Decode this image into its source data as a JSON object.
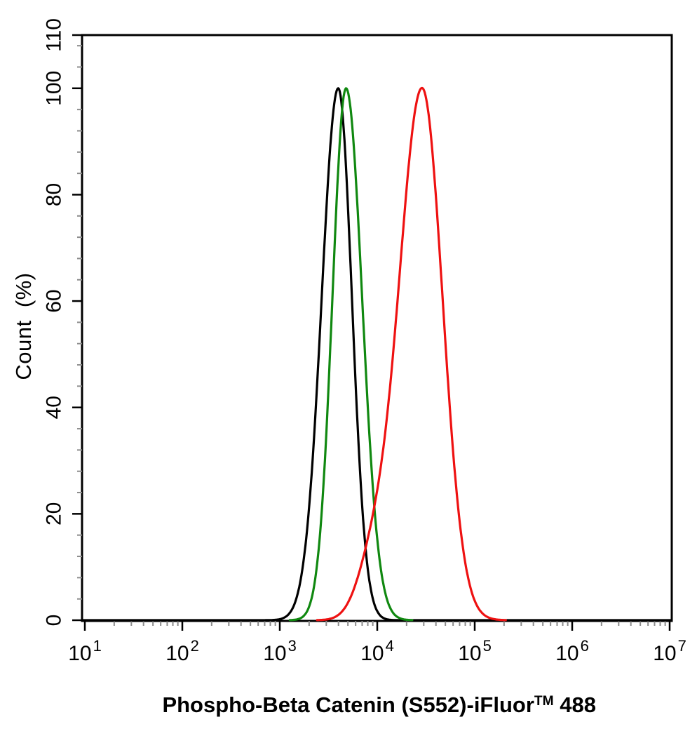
{
  "page": {
    "background": "#ffffff",
    "title": ""
  },
  "chart_data": {
    "type": "line",
    "subtype": "flow-cytometry-histogram-overlay",
    "title": "",
    "grid": false,
    "legend": false,
    "x_axis": {
      "scale": "log10",
      "label_main": "Phospho-Beta Catenin (S552)-iFluor",
      "label_sup": "TM",
      "label_tail": " 488",
      "tick_exponents": [
        1,
        2,
        3,
        4,
        5,
        6,
        7
      ],
      "minor_ticks_per_decade": [
        2,
        3,
        4,
        5,
        6,
        7,
        8,
        9
      ],
      "range": [
        10,
        10000000
      ]
    },
    "y_axis": {
      "label": "Count  (%)",
      "major_ticks": [
        0,
        20,
        40,
        60,
        80,
        100,
        110
      ],
      "minor_tick_step": 4,
      "range": [
        0,
        110
      ]
    },
    "series": [
      {
        "name": "black-histogram",
        "color": "#000000",
        "peak_x": 4000,
        "peak_y": 100,
        "draw_full_baseline": true,
        "components": [
          {
            "log10_center": 3.6,
            "sigma_left": 0.17,
            "sigma_right": 0.14,
            "amplitude": 100
          }
        ]
      },
      {
        "name": "green-histogram",
        "color": "#108810",
        "peak_x": 4800,
        "peak_y": 100,
        "draw_full_baseline": false,
        "components": [
          {
            "log10_center": 3.68,
            "sigma_left": 0.14,
            "sigma_right": 0.165,
            "amplitude": 100
          }
        ]
      },
      {
        "name": "red-histogram",
        "color": "#ee1111",
        "peak_x": 28800,
        "peak_y": 100,
        "draw_full_baseline": false,
        "components": [
          {
            "log10_center": 4.46,
            "sigma_left": 0.24,
            "sigma_right": 0.21,
            "amplitude": 100
          },
          {
            "log10_center": 3.95,
            "sigma_left": 0.16,
            "sigma_right": 0.16,
            "amplitude": 9
          }
        ]
      }
    ],
    "colors": {
      "axis": "#000000",
      "minor_tick": "#8c8c8c",
      "text": "#000000"
    }
  }
}
